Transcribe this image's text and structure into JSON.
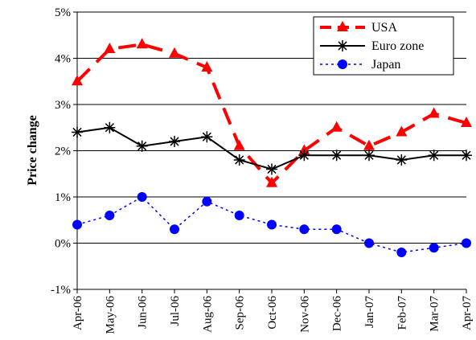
{
  "chart_data": {
    "type": "line",
    "title": "",
    "xlabel": "",
    "ylabel": "Price change",
    "ylim": [
      -1,
      5
    ],
    "yticks": [
      "-1%",
      "0%",
      "1%",
      "2%",
      "3%",
      "4%",
      "5%"
    ],
    "categories": [
      "Apr-06",
      "May-06",
      "Jun-06",
      "Jul-06",
      "Aug-06",
      "Sep-06",
      "Oct-06",
      "Nov-06",
      "Dec-06",
      "Jan-07",
      "Feb-07",
      "Mar-07",
      "Apr-07"
    ],
    "grid": "horizontal",
    "legend_position": "top-right",
    "series": [
      {
        "name": "USA",
        "color": "#ff0000",
        "marker": "triangle",
        "line": "long-dash",
        "values": [
          3.5,
          4.2,
          4.3,
          4.1,
          3.8,
          2.1,
          1.3,
          2.0,
          2.5,
          2.1,
          2.4,
          2.8,
          2.6
        ]
      },
      {
        "name": "Euro zone",
        "color": "#000000",
        "marker": "asterisk",
        "line": "solid",
        "values": [
          2.4,
          2.5,
          2.1,
          2.2,
          2.3,
          1.8,
          1.6,
          1.9,
          1.9,
          1.9,
          1.8,
          1.9,
          1.9
        ]
      },
      {
        "name": "Japan",
        "color": "#0000ff",
        "marker": "circle",
        "line": "dotted",
        "values": [
          0.4,
          0.6,
          1.0,
          0.3,
          0.9,
          0.6,
          0.4,
          0.3,
          0.3,
          0.0,
          -0.2,
          -0.1,
          0.0
        ]
      }
    ]
  }
}
